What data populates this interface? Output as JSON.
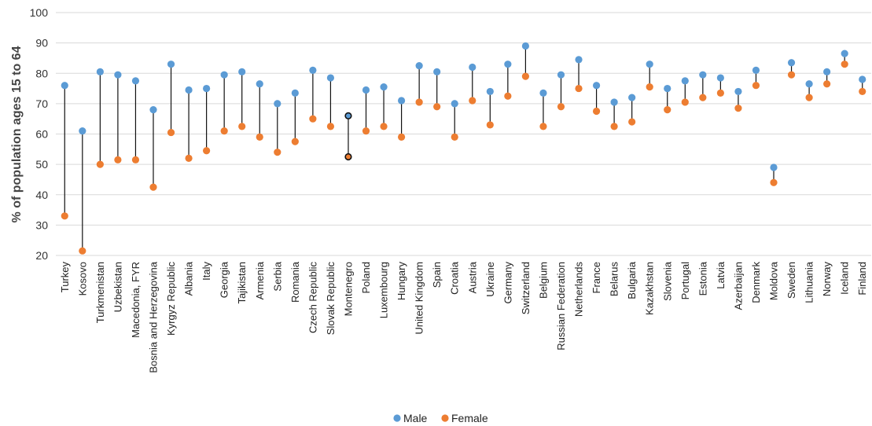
{
  "chart_data": {
    "type": "dumbbell",
    "ylabel": "% of population ages 15 to 64",
    "ylim": [
      20,
      100
    ],
    "yticks": [
      20,
      30,
      40,
      50,
      60,
      70,
      80,
      90,
      100
    ],
    "grid": true,
    "legend_position": "bottom",
    "highlighted_category": "Montenegro",
    "categories": [
      "Turkey",
      "Kosovo",
      "Turkmenistan",
      "Uzbekistan",
      "Macedonia, FYR",
      "Bosnia and Herzegovina",
      "Kyrgyz Republic",
      "Albania",
      "Italy",
      "Georgia",
      "Tajikistan",
      "Armenia",
      "Serbia",
      "Romania",
      "Czech Republic",
      "Slovak Republic",
      "Montenegro",
      "Poland",
      "Luxembourg",
      "Hungary",
      "United Kingdom",
      "Spain",
      "Croatia",
      "Austria",
      "Ukraine",
      "Germany",
      "Switzerland",
      "Belgium",
      "Russian Federation",
      "Netherlands",
      "France",
      "Belarus",
      "Bulgaria",
      "Kazakhstan",
      "Slovenia",
      "Portugal",
      "Estonia",
      "Latvia",
      "Azerbaijan",
      "Denmark",
      "Moldova",
      "Sweden",
      "Lithuania",
      "Norway",
      "Iceland",
      "Finland"
    ],
    "series": [
      {
        "name": "Male",
        "color": "#5b9bd5",
        "values": [
          76,
          61,
          80.5,
          79.5,
          77.5,
          68,
          83,
          74.5,
          75,
          79.5,
          80.5,
          76.5,
          70,
          73.5,
          81,
          78.5,
          66,
          74.5,
          75.5,
          71,
          82.5,
          80.5,
          70,
          82,
          74,
          83,
          89,
          73.5,
          79.5,
          84.5,
          76,
          70.5,
          72,
          83,
          75,
          77.5,
          79.5,
          78.5,
          74,
          81,
          49,
          83.5,
          76.5,
          80.5,
          86.5,
          78
        ]
      },
      {
        "name": "Female",
        "color": "#ed7d31",
        "values": [
          33,
          21.5,
          50,
          51.5,
          51.5,
          42.5,
          60.5,
          52,
          54.5,
          61,
          62.5,
          59,
          54,
          57.5,
          65,
          62.5,
          52.5,
          61,
          62.5,
          59,
          70.5,
          69,
          59,
          71,
          63,
          72.5,
          79,
          62.5,
          69,
          75,
          67.5,
          62.5,
          64,
          75.5,
          68,
          70.5,
          72,
          73.5,
          68.5,
          76,
          44,
          79.5,
          72,
          76.5,
          83,
          74
        ]
      }
    ]
  }
}
